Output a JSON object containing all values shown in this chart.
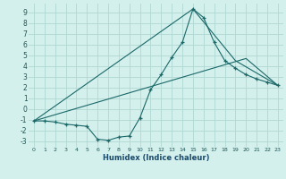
{
  "title": "",
  "xlabel": "Humidex (Indice chaleur)",
  "bg_color": "#d4f0ec",
  "grid_color": "#b0d8d4",
  "line_color": "#1a6868",
  "xlim": [
    -0.5,
    23.5
  ],
  "ylim": [
    -3.5,
    9.8
  ],
  "xticks": [
    0,
    1,
    2,
    3,
    4,
    5,
    6,
    7,
    8,
    9,
    10,
    11,
    12,
    13,
    14,
    15,
    16,
    17,
    18,
    19,
    20,
    21,
    22,
    23
  ],
  "yticks": [
    -3,
    -2,
    -1,
    0,
    1,
    2,
    3,
    4,
    5,
    6,
    7,
    8,
    9
  ],
  "line1_x": [
    0,
    1,
    2,
    3,
    4,
    5,
    6,
    7,
    8,
    9,
    10,
    11,
    12,
    13,
    14,
    15,
    16,
    17,
    18,
    19,
    20,
    21,
    22,
    23
  ],
  "line1_y": [
    -1.1,
    -1.1,
    -1.2,
    -1.4,
    -1.5,
    -1.6,
    -2.8,
    -2.9,
    -2.6,
    -2.5,
    -0.8,
    1.8,
    3.2,
    4.8,
    6.2,
    9.3,
    8.5,
    6.2,
    4.5,
    3.8,
    3.2,
    2.8,
    2.5,
    2.2
  ],
  "line2_x": [
    0,
    15,
    19,
    23
  ],
  "line2_y": [
    -1.1,
    9.3,
    4.5,
    2.2
  ],
  "line3_x": [
    0,
    20,
    23
  ],
  "line3_y": [
    -1.1,
    4.7,
    2.2
  ]
}
